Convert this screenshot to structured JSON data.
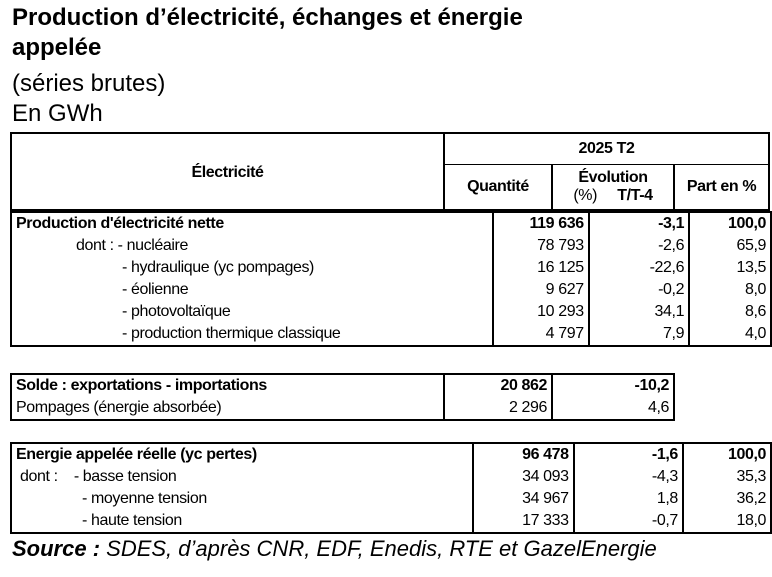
{
  "title_line1": "Production d’électricité, échanges et énergie",
  "title_line2": "appelée",
  "subtitle": "(séries brutes)",
  "unit": "En GWh",
  "header": {
    "row_label": "Électricité",
    "period": "2025 T2",
    "quantity": "Quantité",
    "evolution": "Évolution",
    "evolution_pct": "(%)",
    "evolution_ref": "T/T-4",
    "share": "Part en %"
  },
  "section1": [
    {
      "label": "Production d'électricité nette",
      "indent": 0,
      "bold": true,
      "quantity": "119 636",
      "evolution": "-3,1",
      "share": "100,0"
    },
    {
      "label": "dont : - nucléaire",
      "indent": 60,
      "bold": false,
      "quantity": "78 793",
      "evolution": "-2,6",
      "share": "65,9"
    },
    {
      "label": "- hydraulique (yc pompages)",
      "indent": 106,
      "bold": false,
      "quantity": "16 125",
      "evolution": "-22,6",
      "share": "13,5"
    },
    {
      "label": "- éolienne",
      "indent": 106,
      "bold": false,
      "quantity": "9 627",
      "evolution": "-0,2",
      "share": "8,0"
    },
    {
      "label": "- photovoltaïque",
      "indent": 106,
      "bold": false,
      "quantity": "10 293",
      "evolution": "34,1",
      "share": "8,6"
    },
    {
      "label": "- production thermique classique",
      "indent": 106,
      "bold": false,
      "quantity": "4 797",
      "evolution": "7,9",
      "share": "4,0"
    }
  ],
  "section2": [
    {
      "label": "Solde : exportations - importations",
      "indent": 0,
      "bold": true,
      "quantity": "20 862",
      "evolution": "-10,2"
    },
    {
      "label": "Pompages (énergie absorbée)",
      "indent": 0,
      "bold": false,
      "quantity": "2 296",
      "evolution": "4,6"
    }
  ],
  "section3": [
    {
      "label": "Energie appelée réelle (yc pertes)",
      "indent": 0,
      "bold": true,
      "quantity": "96 478",
      "evolution": "-1,6",
      "share": "100,0"
    },
    {
      "label": "dont :    - basse tension",
      "indent": 4,
      "bold": false,
      "quantity": "34 093",
      "evolution": "-4,3",
      "share": "35,3"
    },
    {
      "label": "- moyenne tension",
      "indent": 66,
      "bold": false,
      "quantity": "34 967",
      "evolution": "1,8",
      "share": "36,2"
    },
    {
      "label": "- haute tension",
      "indent": 66,
      "bold": false,
      "quantity": "17 333",
      "evolution": "-0,7",
      "share": "18,0"
    }
  ],
  "source_label": "Source :",
  "source_text": " SDES, d’après CNR, EDF, Enedis, RTE et GazelEnergie"
}
